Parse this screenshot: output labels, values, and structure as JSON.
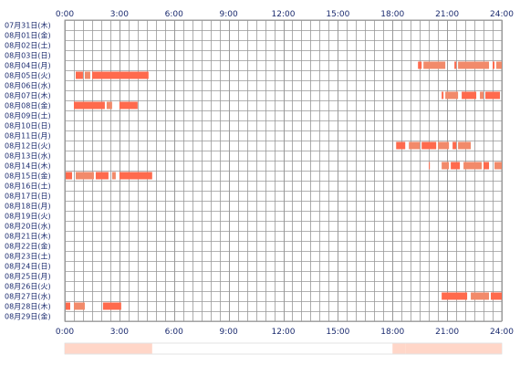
{
  "chart_data": {
    "type": "heatmap",
    "title": "",
    "x_ticks": [
      "0:00",
      "3:00",
      "6:00",
      "9:00",
      "12:00",
      "15:00",
      "18:00",
      "21:00",
      "24:00"
    ],
    "x_range_hours": [
      0,
      24
    ],
    "grid": true,
    "colors": {
      "bar_primary": "#ff6a4d",
      "bar_secondary": "#f28a6a",
      "grid": "#999999",
      "axis_text": "#1a2a6e",
      "density_strip": "#ffd6c8"
    },
    "rows": [
      {
        "label": "07月31日(木)",
        "segments": []
      },
      {
        "label": "08月01日(金)",
        "segments": []
      },
      {
        "label": "08月02日(土)",
        "segments": []
      },
      {
        "label": "08月03日(日)",
        "segments": []
      },
      {
        "label": "08月04日(月)",
        "segments": [
          [
            19.4,
            19.6
          ],
          [
            19.7,
            20.9
          ],
          [
            21.4,
            21.5
          ],
          [
            21.6,
            23.3
          ],
          [
            23.5,
            23.6
          ],
          [
            23.7,
            24.0
          ]
        ]
      },
      {
        "label": "08月05日(火)",
        "segments": [
          [
            0.6,
            1.0
          ],
          [
            1.1,
            1.4
          ],
          [
            1.5,
            4.6
          ]
        ]
      },
      {
        "label": "08月06日(水)",
        "segments": []
      },
      {
        "label": "08月07日(木)",
        "segments": [
          [
            20.7,
            20.8
          ],
          [
            20.9,
            21.6
          ],
          [
            21.8,
            22.6
          ],
          [
            22.8,
            23.0
          ],
          [
            23.1,
            23.9
          ]
        ]
      },
      {
        "label": "08月08日(金)",
        "segments": [
          [
            0.5,
            2.2
          ],
          [
            2.3,
            2.6
          ],
          [
            3.0,
            4.0
          ]
        ]
      },
      {
        "label": "08月09日(土)",
        "segments": []
      },
      {
        "label": "08月10日(日)",
        "segments": []
      },
      {
        "label": "08月11日(月)",
        "segments": []
      },
      {
        "label": "08月12日(火)",
        "segments": [
          [
            18.2,
            18.7
          ],
          [
            18.9,
            19.5
          ],
          [
            19.6,
            20.4
          ],
          [
            20.5,
            21.1
          ],
          [
            21.3,
            21.5
          ],
          [
            21.6,
            22.3
          ]
        ]
      },
      {
        "label": "08月13日(水)",
        "segments": []
      },
      {
        "label": "08月14日(木)",
        "segments": [
          [
            20.0,
            20.05
          ],
          [
            20.7,
            21.1
          ],
          [
            21.2,
            21.7
          ],
          [
            21.9,
            22.9
          ],
          [
            23.0,
            23.3
          ],
          [
            23.6,
            24.0
          ]
        ]
      },
      {
        "label": "08月15日(金)",
        "segments": [
          [
            0.05,
            0.4
          ],
          [
            0.6,
            1.6
          ],
          [
            1.7,
            2.4
          ],
          [
            2.6,
            2.8
          ],
          [
            3.0,
            4.8
          ]
        ]
      },
      {
        "label": "08月16日(土)",
        "segments": []
      },
      {
        "label": "08月17日(日)",
        "segments": []
      },
      {
        "label": "08月18日(月)",
        "segments": []
      },
      {
        "label": "08月19日(火)",
        "segments": []
      },
      {
        "label": "08月20日(水)",
        "segments": []
      },
      {
        "label": "08月21日(木)",
        "segments": []
      },
      {
        "label": "08月22日(金)",
        "segments": []
      },
      {
        "label": "08月23日(土)",
        "segments": []
      },
      {
        "label": "08月24日(日)",
        "segments": []
      },
      {
        "label": "08月25日(月)",
        "segments": []
      },
      {
        "label": "08月26日(火)",
        "segments": []
      },
      {
        "label": "08月27日(水)",
        "segments": [
          [
            20.7,
            22.1
          ],
          [
            22.3,
            23.3
          ],
          [
            23.4,
            24.0
          ]
        ]
      },
      {
        "label": "08月28日(木)",
        "segments": [
          [
            0.05,
            0.3
          ],
          [
            0.5,
            1.1
          ],
          [
            2.1,
            3.1
          ]
        ]
      },
      {
        "label": "08月29日(金)",
        "segments": []
      }
    ],
    "density_strip": [
      [
        0,
        4.8
      ],
      [
        18.0,
        18.7
      ],
      [
        18.7,
        24.0
      ]
    ]
  }
}
